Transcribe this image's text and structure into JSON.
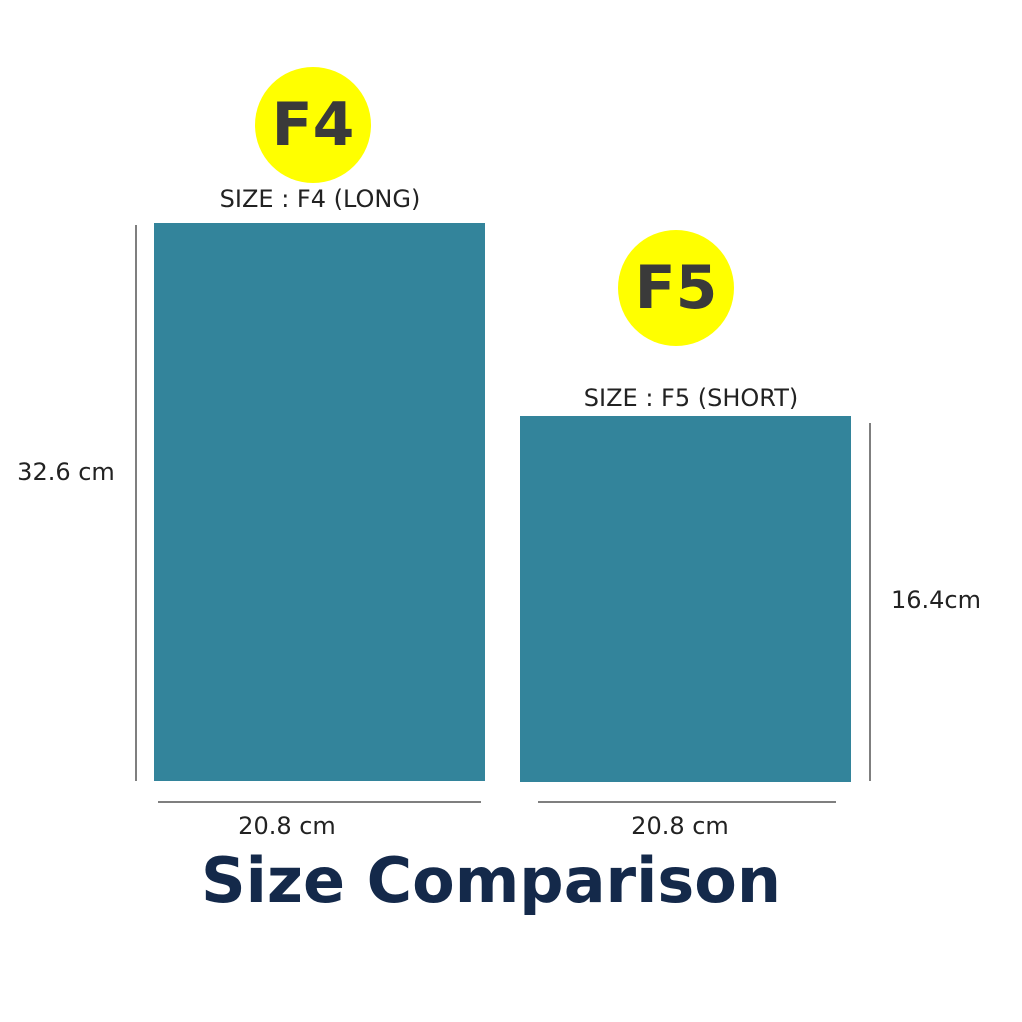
{
  "title": "Size Comparison",
  "items": [
    {
      "badge": "F4",
      "size_label": "SIZE : F4 (LONG)",
      "height_label": "32.6 cm",
      "width_label": "20.8 cm"
    },
    {
      "badge": "F5",
      "size_label": "SIZE : F5 (SHORT)",
      "height_label": "16.4cm",
      "width_label": "20.8 cm"
    }
  ]
}
